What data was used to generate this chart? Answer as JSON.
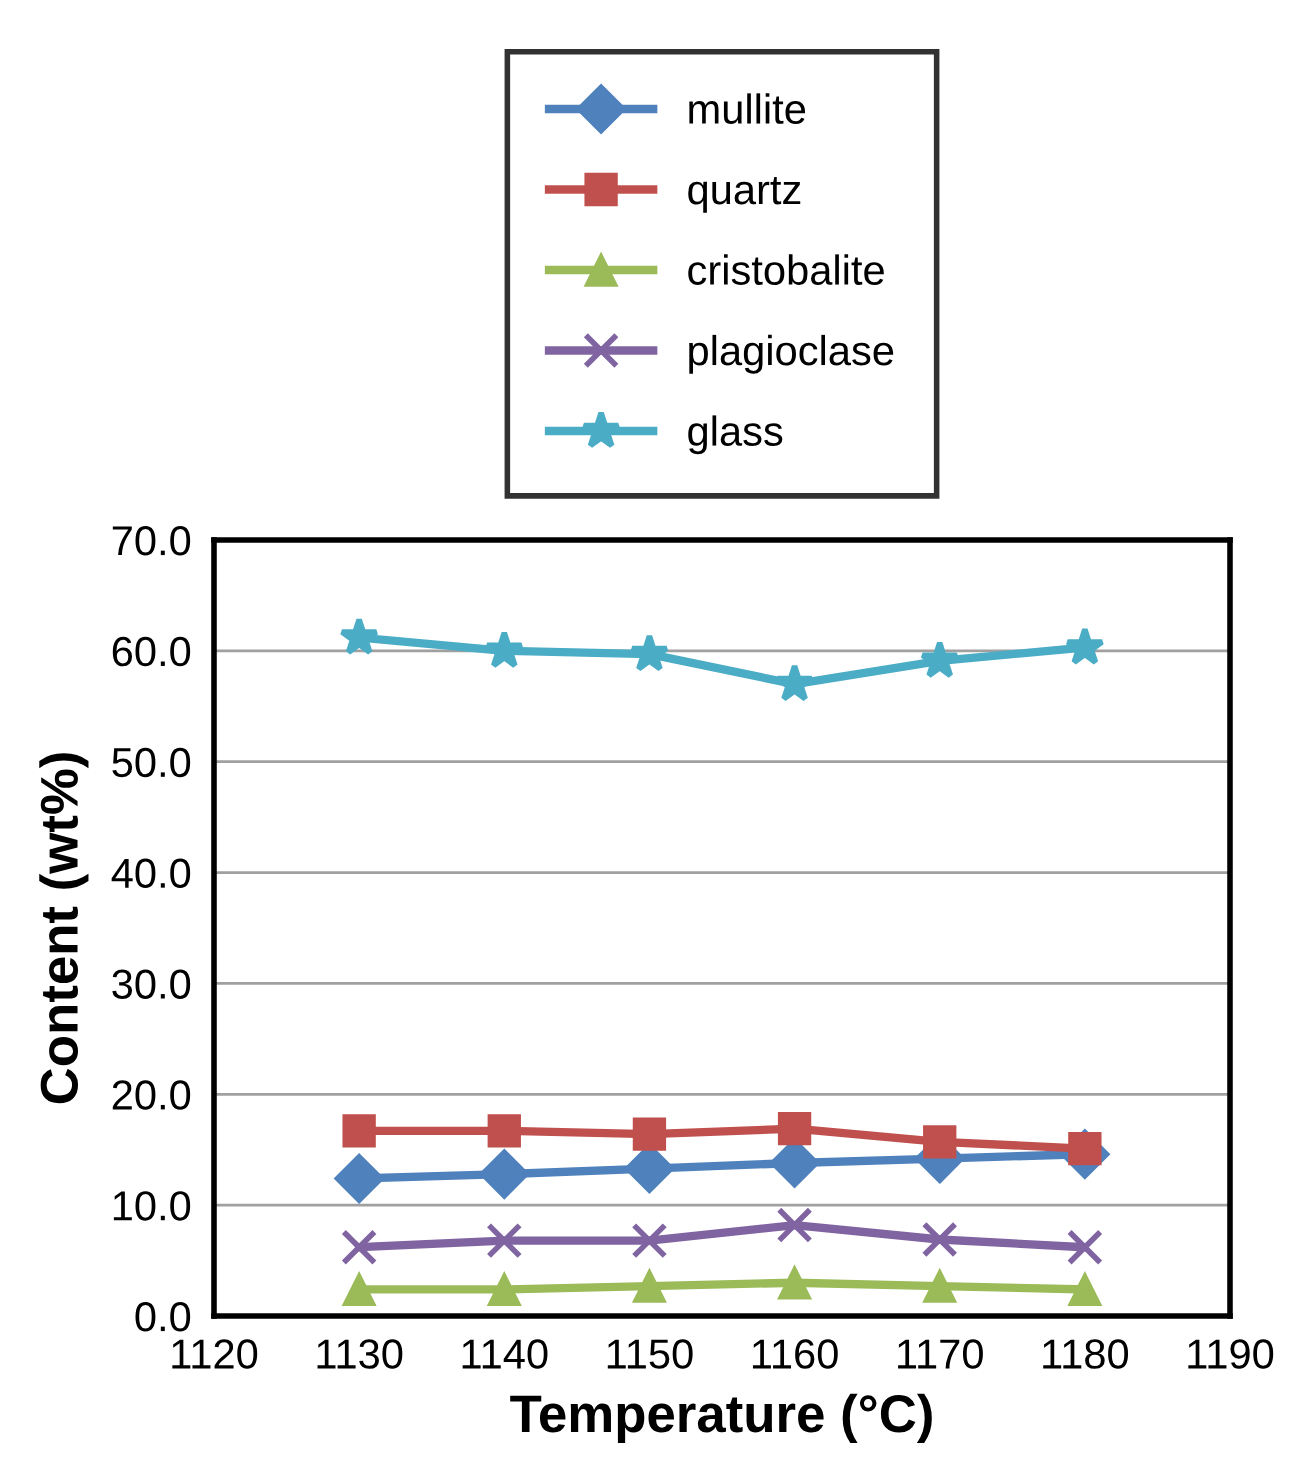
{
  "chart_data": {
    "type": "line",
    "xlabel": "Temperature (°C)",
    "ylabel": "Content (wt%)",
    "x": [
      1130,
      1140,
      1150,
      1160,
      1170,
      1180
    ],
    "xlim": [
      1120,
      1190
    ],
    "xticks": [
      1120,
      1130,
      1140,
      1150,
      1160,
      1170,
      1180,
      1190
    ],
    "ylim": [
      0,
      70
    ],
    "yticks": [
      {
        "value": 0,
        "label": "0.0"
      },
      {
        "value": 10,
        "label": "10.0"
      },
      {
        "value": 20,
        "label": "20.0"
      },
      {
        "value": 30,
        "label": "30.0"
      },
      {
        "value": 40,
        "label": "40.0"
      },
      {
        "value": 50,
        "label": "50.0"
      },
      {
        "value": 60,
        "label": "60.0"
      },
      {
        "value": 70,
        "label": "70.0"
      }
    ],
    "grid": "y",
    "legend": "top",
    "line_style": "solid",
    "series": [
      {
        "name": "mullite",
        "color": "#4f81bd",
        "marker": "diamond",
        "values": [
          12.4,
          12.8,
          13.3,
          13.8,
          14.2,
          14.6
        ]
      },
      {
        "name": "quartz",
        "color": "#c0504d",
        "marker": "square",
        "values": [
          16.7,
          16.7,
          16.4,
          16.9,
          15.7,
          15.1
        ]
      },
      {
        "name": "cristobalite",
        "color": "#9bbb59",
        "marker": "triangle",
        "values": [
          2.4,
          2.4,
          2.7,
          3.0,
          2.7,
          2.4
        ]
      },
      {
        "name": "plagioclase",
        "color": "#8064a2",
        "marker": "cross",
        "values": [
          6.2,
          6.8,
          6.8,
          8.2,
          6.9,
          6.2
        ]
      },
      {
        "name": "glass",
        "color": "#4bacc6",
        "marker": "star",
        "values": [
          61.2,
          60.0,
          59.7,
          57.0,
          59.1,
          60.3
        ]
      }
    ]
  }
}
